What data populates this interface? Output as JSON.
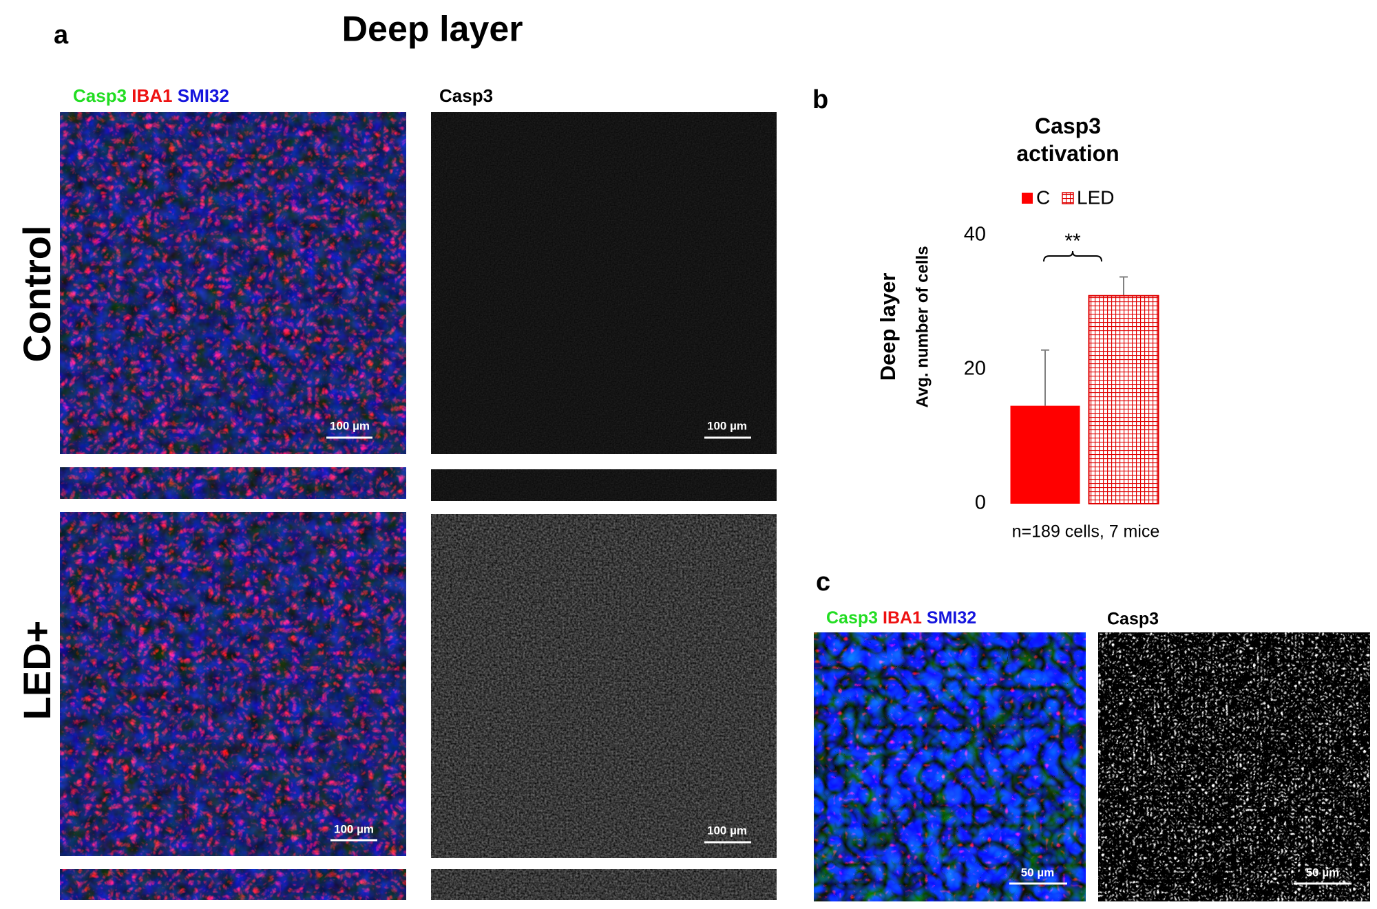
{
  "panel_a": {
    "label": "a",
    "title": "Deep layer",
    "merged_channels": [
      "Casp3",
      "IBA1",
      "SMI32"
    ],
    "single_channel": "Casp3",
    "rows": [
      "Control",
      "LED+"
    ],
    "scale_bars": [
      "100 µm",
      "100 µm",
      "100 µm",
      "100 µm"
    ]
  },
  "panel_b": {
    "label": "b"
  },
  "chart_data": {
    "type": "bar",
    "title": "Casp3 activation",
    "ylabel": "Deep layer",
    "ylabel2": "Avg. number of cells",
    "categories": [
      null
    ],
    "series": [
      {
        "name": "C",
        "color": "#ff0000",
        "values": [
          14.6
        ],
        "errors": [
          8.3
        ]
      },
      {
        "name": "LED",
        "color": "#e00000",
        "pattern": "grid",
        "values": [
          31
        ],
        "errors": [
          2.8
        ]
      }
    ],
    "error_color": "#808080",
    "ylim": [
      0,
      40
    ],
    "yticks": [
      0,
      20,
      40
    ],
    "grid": false,
    "legend": "top",
    "annotation": "**",
    "note": "n=189 cells, 7 mice"
  },
  "panel_c": {
    "label": "c",
    "merged_channels": [
      "Casp3",
      "IBA1",
      "SMI32"
    ],
    "single_channel": "Casp3",
    "scale_bars": [
      "50 µm",
      "50 µm"
    ]
  }
}
